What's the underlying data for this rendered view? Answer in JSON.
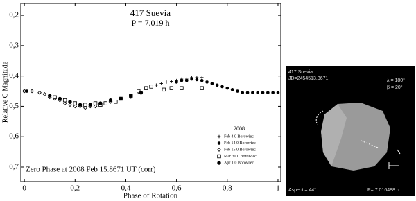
{
  "chart_data": {
    "type": "scatter",
    "title": "417 Suevia",
    "subtitle": "P = 7.019 h",
    "x_label": "Phase of Rotation",
    "y_label": "Relative C Magnitude",
    "annotation": "Zero Phase at 2008 Feb 15.8671 UT (corr)",
    "legend_title": "2008",
    "legend": "lower right",
    "y_inverted": true,
    "xlim": [
      -0.014,
      1.011
    ],
    "ylim": [
      0.161,
      0.748
    ],
    "xticks": [
      0,
      {
        "value": 0.2,
        "label": "0,2"
      },
      {
        "value": 0.4,
        "label": "0,4"
      },
      {
        "value": 0.6,
        "label": "0,6"
      },
      {
        "value": 0.8,
        "label": "0,8"
      },
      1
    ],
    "yticks": [
      {
        "value": 0.2,
        "label": "0,2"
      },
      {
        "value": 0.3,
        "label": "0,3"
      },
      {
        "value": 0.4,
        "label": "0,4"
      },
      {
        "value": 0.5,
        "label": "0,5"
      },
      {
        "value": 0.6,
        "label": "0,6"
      },
      {
        "value": 0.7,
        "label": "0,7"
      }
    ],
    "series": [
      {
        "name": "Feb 4.0 Borowiec",
        "marker": "plus",
        "color": "#000000",
        "x": [
          0.42,
          0.45,
          0.48,
          0.5,
          0.52,
          0.54,
          0.56,
          0.58,
          0.6,
          0.62,
          0.64,
          0.66,
          0.68,
          0.7
        ],
        "y": [
          0.47,
          0.455,
          0.44,
          0.435,
          0.43,
          0.425,
          0.42,
          0.418,
          0.415,
          0.41,
          0.41,
          0.405,
          0.405,
          0.405
        ]
      },
      {
        "name": "Feb 14.0 Borowiec",
        "marker": "circle",
        "color": "#000000",
        "x": [
          0.0,
          0.01,
          0.6,
          0.62,
          0.64,
          0.66,
          0.68,
          0.7,
          0.72,
          0.74,
          0.76,
          0.78,
          0.8,
          0.82,
          0.84,
          0.86,
          0.88,
          0.9,
          0.92,
          0.94,
          0.96,
          0.98,
          1.0
        ],
        "y": [
          0.45,
          0.45,
          0.42,
          0.415,
          0.415,
          0.41,
          0.412,
          0.415,
          0.42,
          0.425,
          0.43,
          0.435,
          0.44,
          0.445,
          0.45,
          0.455,
          0.455,
          0.455,
          0.455,
          0.455,
          0.455,
          0.455,
          0.455
        ]
      },
      {
        "name": "Feb 15.0 Borowiec",
        "marker": "diamond",
        "color": "#000000",
        "x": [
          0.0,
          0.03,
          0.06,
          0.08,
          0.1,
          0.12,
          0.14,
          0.16,
          0.18,
          0.2,
          0.22,
          0.24,
          0.26,
          0.28,
          0.3,
          0.32,
          0.34
        ],
        "y": [
          0.45,
          0.45,
          0.455,
          0.46,
          0.47,
          0.475,
          0.48,
          0.49,
          0.495,
          0.5,
          0.5,
          0.505,
          0.5,
          0.5,
          0.495,
          0.49,
          0.485
        ]
      },
      {
        "name": "Mar 30.0 Borowiec",
        "marker": "square",
        "color": "#000000",
        "x": [
          0.12,
          0.16,
          0.2,
          0.24,
          0.28,
          0.3,
          0.32,
          0.36,
          0.38,
          0.42,
          0.45,
          0.48,
          0.5,
          0.55,
          0.58,
          0.62,
          0.7
        ],
        "y": [
          0.47,
          0.48,
          0.49,
          0.495,
          0.49,
          0.495,
          0.49,
          0.485,
          0.475,
          0.465,
          0.45,
          0.44,
          0.435,
          0.445,
          0.44,
          0.44,
          0.44
        ]
      },
      {
        "name": "Apr 1.0 Borowiec",
        "marker": "half",
        "color": "#000000",
        "x": [
          0.1,
          0.14,
          0.18,
          0.22,
          0.26,
          0.3,
          0.34,
          0.38,
          0.42,
          0.46
        ],
        "y": [
          0.465,
          0.475,
          0.485,
          0.495,
          0.495,
          0.49,
          0.48,
          0.475,
          0.465,
          0.455
        ]
      }
    ]
  },
  "shape_panel": {
    "name": "417 Suevia",
    "jd": "JD=2454513.3671",
    "lambda": "λ = 180°",
    "beta": "β = 20°",
    "aspect": "Aspect = 44°",
    "period": "P= 7.016488 h"
  }
}
